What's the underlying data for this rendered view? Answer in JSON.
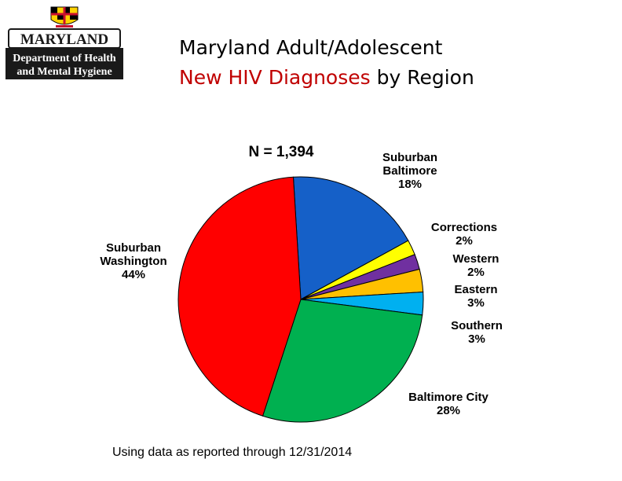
{
  "logo": {
    "line1": "MARYLAND",
    "line2": "Department of Health",
    "line3": "and Mental Hygiene"
  },
  "title": {
    "line1": "Maryland Adult/Adolescent",
    "highlight": "New HIV Diagnoses",
    "rest": " by Region"
  },
  "footnote": "Using data as reported through 12/31/2014",
  "chart_data": {
    "type": "pie",
    "annotation": "N = 1,394",
    "slices": [
      {
        "label": [
          "Suburban",
          "Baltimore"
        ],
        "pct": "18%",
        "value": 18,
        "color": "#1560c8"
      },
      {
        "label": [
          "Corrections"
        ],
        "pct": "2%",
        "value": 2,
        "color": "#ffff00"
      },
      {
        "label": [
          "Western"
        ],
        "pct": "2%",
        "value": 2,
        "color": "#7030a0"
      },
      {
        "label": [
          "Eastern"
        ],
        "pct": "3%",
        "value": 3,
        "color": "#ffc000"
      },
      {
        "label": [
          "Southern"
        ],
        "pct": "3%",
        "value": 3,
        "color": "#00b0f0"
      },
      {
        "label": [
          "Baltimore City"
        ],
        "pct": "28%",
        "value": 28,
        "color": "#00b050"
      },
      {
        "label": [
          "Suburban",
          "Washington"
        ],
        "pct": "44%",
        "value": 44,
        "color": "#ff0000"
      }
    ]
  }
}
